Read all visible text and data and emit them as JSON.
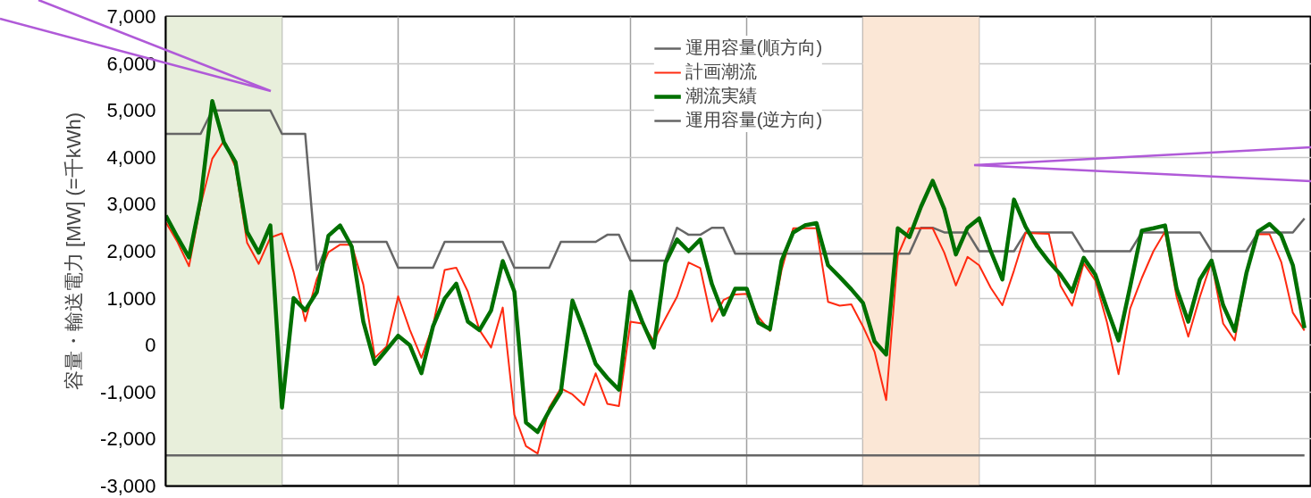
{
  "chart_data": {
    "type": "line",
    "ylabel": "容量・輸送電力 [MW] (=千kWh)",
    "categories": [
      null,
      null,
      null,
      null,
      null,
      null,
      null,
      null,
      null,
      null,
      null,
      null,
      null,
      null,
      null,
      null,
      null,
      null,
      null,
      null,
      null,
      null,
      null,
      null,
      null,
      null,
      null,
      null,
      null,
      null,
      null,
      null,
      null,
      null,
      null,
      null,
      null,
      null,
      null,
      null,
      null,
      null,
      null,
      null,
      null,
      null,
      null,
      null,
      null,
      null,
      null,
      null,
      null,
      null,
      null,
      null,
      null,
      null,
      null,
      null,
      null,
      null,
      null,
      null,
      null,
      null,
      null,
      null,
      null,
      null,
      null,
      null,
      null,
      null,
      null,
      null,
      null,
      null,
      null,
      null,
      null,
      null,
      null,
      null,
      null,
      null,
      null,
      null,
      null,
      null,
      null,
      null,
      null,
      null,
      null,
      null,
      null,
      null,
      null
    ],
    "ylim": [
      -3000,
      7000
    ],
    "yticks": [
      {
        "value": -3000,
        "label": "-3,000"
      },
      {
        "value": -2000,
        "label": "-2,000"
      },
      {
        "value": -1000,
        "label": "-1,000"
      },
      {
        "value": 0,
        "label": "0"
      },
      {
        "value": 1000,
        "label": "1,000"
      },
      {
        "value": 2000,
        "label": "2,000"
      },
      {
        "value": 3000,
        "label": "3,000"
      },
      {
        "value": 4000,
        "label": "4,000"
      },
      {
        "value": 5000,
        "label": "5,000"
      },
      {
        "value": 6000,
        "label": "6,000"
      },
      {
        "value": 7000,
        "label": "7,000"
      }
    ],
    "tick_labels": "y",
    "grid": true,
    "legend": "top",
    "line_style": "solid",
    "series": [
      {
        "name": "運用容量(順方向)",
        "color": "#666666",
        "values": [
          4500,
          4500,
          4500,
          4500,
          5000,
          5000,
          5000,
          5000,
          5000,
          5000,
          4500,
          4500,
          4500,
          1600,
          2200,
          2200,
          2200,
          2200,
          2200,
          2200,
          1650,
          1650,
          1650,
          1650,
          2200,
          2200,
          2200,
          2200,
          2200,
          2200,
          1650,
          1650,
          1650,
          1650,
          2200,
          2200,
          2200,
          2200,
          2350,
          2350,
          1800,
          1800,
          1800,
          1800,
          2500,
          2350,
          2350,
          2500,
          2500,
          1950,
          1950,
          1950,
          1950,
          1950,
          1950,
          1950,
          1950,
          1950,
          1950,
          1950,
          1950,
          1950,
          1950,
          1950,
          1950,
          2500,
          2500,
          2400,
          2400,
          2400,
          2000,
          2000,
          2000,
          2000,
          2400,
          2400,
          2400,
          2400,
          2400,
          2000,
          2000,
          2000,
          2000,
          2000,
          2400,
          2400,
          2400,
          2400,
          2400,
          2400,
          2000,
          2000,
          2000,
          2000,
          2400,
          2400,
          2400,
          2400,
          2700
        ]
      },
      {
        "name": "計画潮流",
        "color": "#ff2a10",
        "values": [
          2620,
          2200,
          1680,
          2980,
          3970,
          4350,
          3790,
          2180,
          1730,
          2290,
          2380,
          1560,
          510,
          1410,
          1980,
          2140,
          2140,
          1290,
          -270,
          -30,
          1040,
          330,
          -270,
          420,
          1600,
          1650,
          1140,
          320,
          -50,
          800,
          -1480,
          -2150,
          -2310,
          -1330,
          -920,
          -1050,
          -1280,
          -600,
          -1250,
          -1300,
          500,
          460,
          90,
          570,
          1030,
          1760,
          1640,
          500,
          960,
          1080,
          1090,
          600,
          300,
          1600,
          2490,
          2490,
          2490,
          920,
          840,
          870,
          400,
          -140,
          -1170,
          1910,
          2490,
          2490,
          2490,
          1970,
          1270,
          1880,
          1700,
          1220,
          850,
          1590,
          2390,
          2380,
          2370,
          1270,
          840,
          1740,
          1380,
          490,
          -620,
          780,
          1430,
          2000,
          2420,
          1020,
          180,
          1030,
          1780,
          460,
          100,
          1530,
          2360,
          2360,
          1770,
          690,
          310
        ]
      },
      {
        "name": "潮流実績",
        "color": "#007000",
        "values": [
          2760,
          2300,
          1870,
          3100,
          5200,
          4320,
          3900,
          2410,
          1970,
          2550,
          -1330,
          1000,
          740,
          1130,
          2330,
          2550,
          2100,
          500,
          -400,
          -100,
          200,
          0,
          -600,
          400,
          990,
          1310,
          500,
          320,
          740,
          1790,
          1140,
          -1650,
          -1850,
          -1400,
          -1000,
          950,
          300,
          -400,
          -700,
          -950,
          1140,
          500,
          -50,
          1750,
          2250,
          2000,
          2250,
          1300,
          650,
          1200,
          1200,
          480,
          340,
          1800,
          2400,
          2550,
          2600,
          1700,
          1450,
          1190,
          900,
          80,
          -200,
          2490,
          2300,
          2950,
          3500,
          2900,
          1930,
          2500,
          2700,
          2000,
          1400,
          3100,
          2520,
          2100,
          1780,
          1500,
          1140,
          1860,
          1500,
          780,
          100,
          1250,
          2440,
          2490,
          2550,
          1200,
          500,
          1400,
          1800,
          850,
          300,
          1530,
          2420,
          2580,
          2340,
          1700,
          360
        ]
      },
      {
        "name": "運用容量(逆方向)",
        "color": "#666666",
        "values": [
          -2350,
          -2350,
          -2350,
          -2350,
          -2350,
          -2350,
          -2350,
          -2350,
          -2350,
          -2350,
          -2350,
          -2350,
          -2350,
          -2350,
          -2350,
          -2350,
          -2350,
          -2350,
          -2350,
          -2350,
          -2350,
          -2350,
          -2350,
          -2350,
          -2350,
          -2350,
          -2350,
          -2350,
          -2350,
          -2350,
          -2350,
          -2350,
          -2350,
          -2350,
          -2350,
          -2350,
          -2350,
          -2350,
          -2350,
          -2350,
          -2350,
          -2350,
          -2350,
          -2350,
          -2350,
          -2350,
          -2350,
          -2350,
          -2350,
          -2350,
          -2350,
          -2350,
          -2350,
          -2350,
          -2350,
          -2350,
          -2350,
          -2350,
          -2350,
          -2350,
          -2350,
          -2350,
          -2350,
          -2350,
          -2350,
          -2350,
          -2350,
          -2350,
          -2350,
          -2350,
          -2350,
          -2350,
          -2350,
          -2350,
          -2350,
          -2350,
          -2350,
          -2350,
          -2350,
          -2350,
          -2350,
          -2350,
          -2350,
          -2350,
          -2350,
          -2350,
          -2350,
          -2350,
          -2350,
          -2350,
          -2350,
          -2350,
          -2350,
          -2350,
          -2350,
          -2350,
          -2350,
          -2350,
          -2350
        ]
      }
    ]
  }
}
